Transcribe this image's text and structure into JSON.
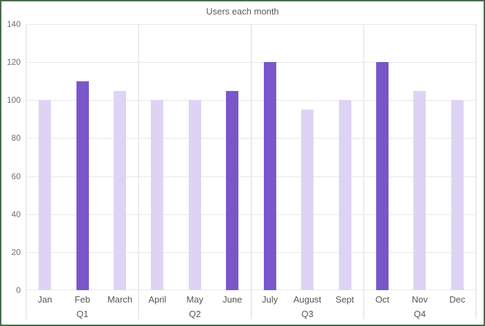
{
  "chart_data": {
    "type": "bar",
    "title": "Users each month",
    "categories": [
      "Jan",
      "Feb",
      "March",
      "April",
      "May",
      "June",
      "July",
      "August",
      "Sept",
      "Oct",
      "Nov",
      "Dec"
    ],
    "values": [
      100,
      110,
      105,
      100,
      100,
      105,
      120,
      95,
      100,
      120,
      105,
      100
    ],
    "highlighted": [
      false,
      true,
      false,
      false,
      false,
      true,
      true,
      false,
      false,
      true,
      false,
      false
    ],
    "highlighted_categories": [
      "Feb",
      "June",
      "July",
      "Oct"
    ],
    "groups": [
      {
        "label": "Q1",
        "span": 3
      },
      {
        "label": "Q2",
        "span": 3
      },
      {
        "label": "Q3",
        "span": 3
      },
      {
        "label": "Q4",
        "span": 3
      }
    ],
    "xlabel": "",
    "ylabel": "",
    "ylim": [
      0,
      140
    ],
    "yticks": [
      0,
      20,
      40,
      60,
      80,
      100,
      120,
      140
    ],
    "grid": true,
    "legend": false,
    "colors": {
      "bar_default": "#DED3F4",
      "bar_highlight": "#7957CB",
      "gridline": "#E6E6E6",
      "separator": "#EAEAEA",
      "axis_text": "#6E6E6E",
      "label_text": "#555555",
      "title_text": "#5A5A5A",
      "frame_border": "#456A4D",
      "background": "#FFFFFF"
    }
  }
}
